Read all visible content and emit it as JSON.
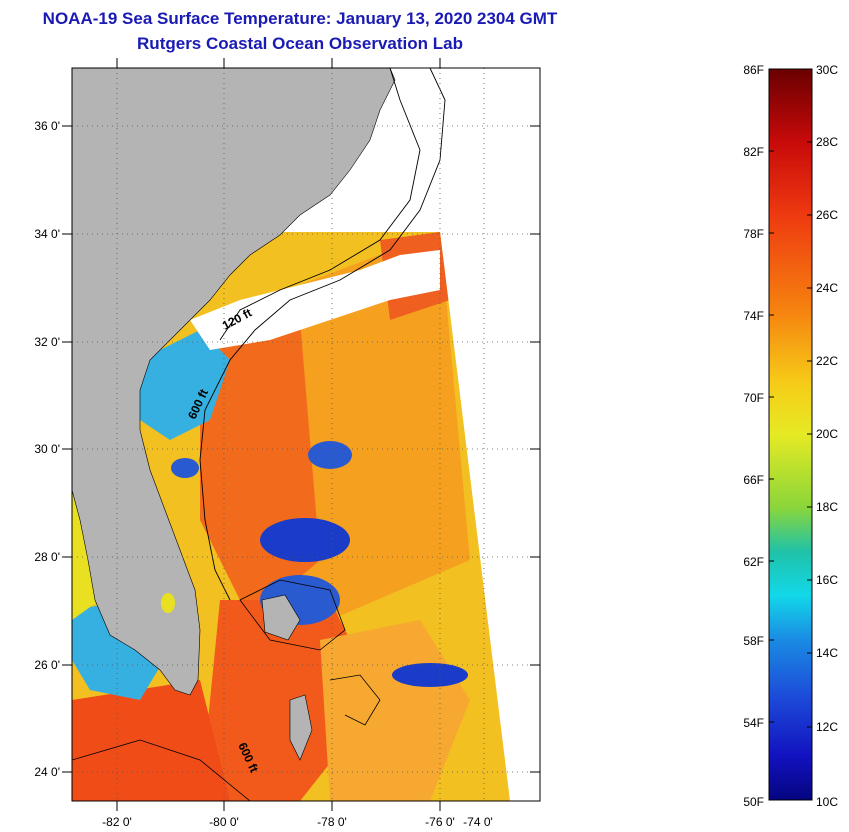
{
  "header": {
    "title": "NOAA-19 Sea Surface Temperature:  January 13, 2020 2304 GMT",
    "subtitle": "Rutgers Coastal Ocean Observation Lab"
  },
  "map": {
    "lat_labels": [
      "36 0'",
      "34 0'",
      "32 0'",
      "30 0'",
      "28 0'",
      "26 0'",
      "24 0'"
    ],
    "lon_labels": [
      "-82 0'",
      "-80 0'",
      "-78 0'",
      "-76 0'",
      "-74 0'"
    ],
    "contour_labels": [
      "120 ft",
      "600 ft",
      "600 ft"
    ],
    "colors": {
      "land": "#b4b4b4",
      "cloud": "#ffffff",
      "warm": "#f25a1c",
      "mild": "#f2c020",
      "cool": "#2a5ad0",
      "cold": "#0a1aa8"
    }
  },
  "colorbar": {
    "fahrenheit_labels": [
      "86F",
      "82F",
      "78F",
      "74F",
      "70F",
      "66F",
      "62F",
      "58F",
      "54F",
      "50F"
    ],
    "celsius_labels": [
      "30C",
      "28C",
      "26C",
      "24C",
      "22C",
      "20C",
      "18C",
      "16C",
      "14C",
      "12C",
      "10C"
    ]
  }
}
